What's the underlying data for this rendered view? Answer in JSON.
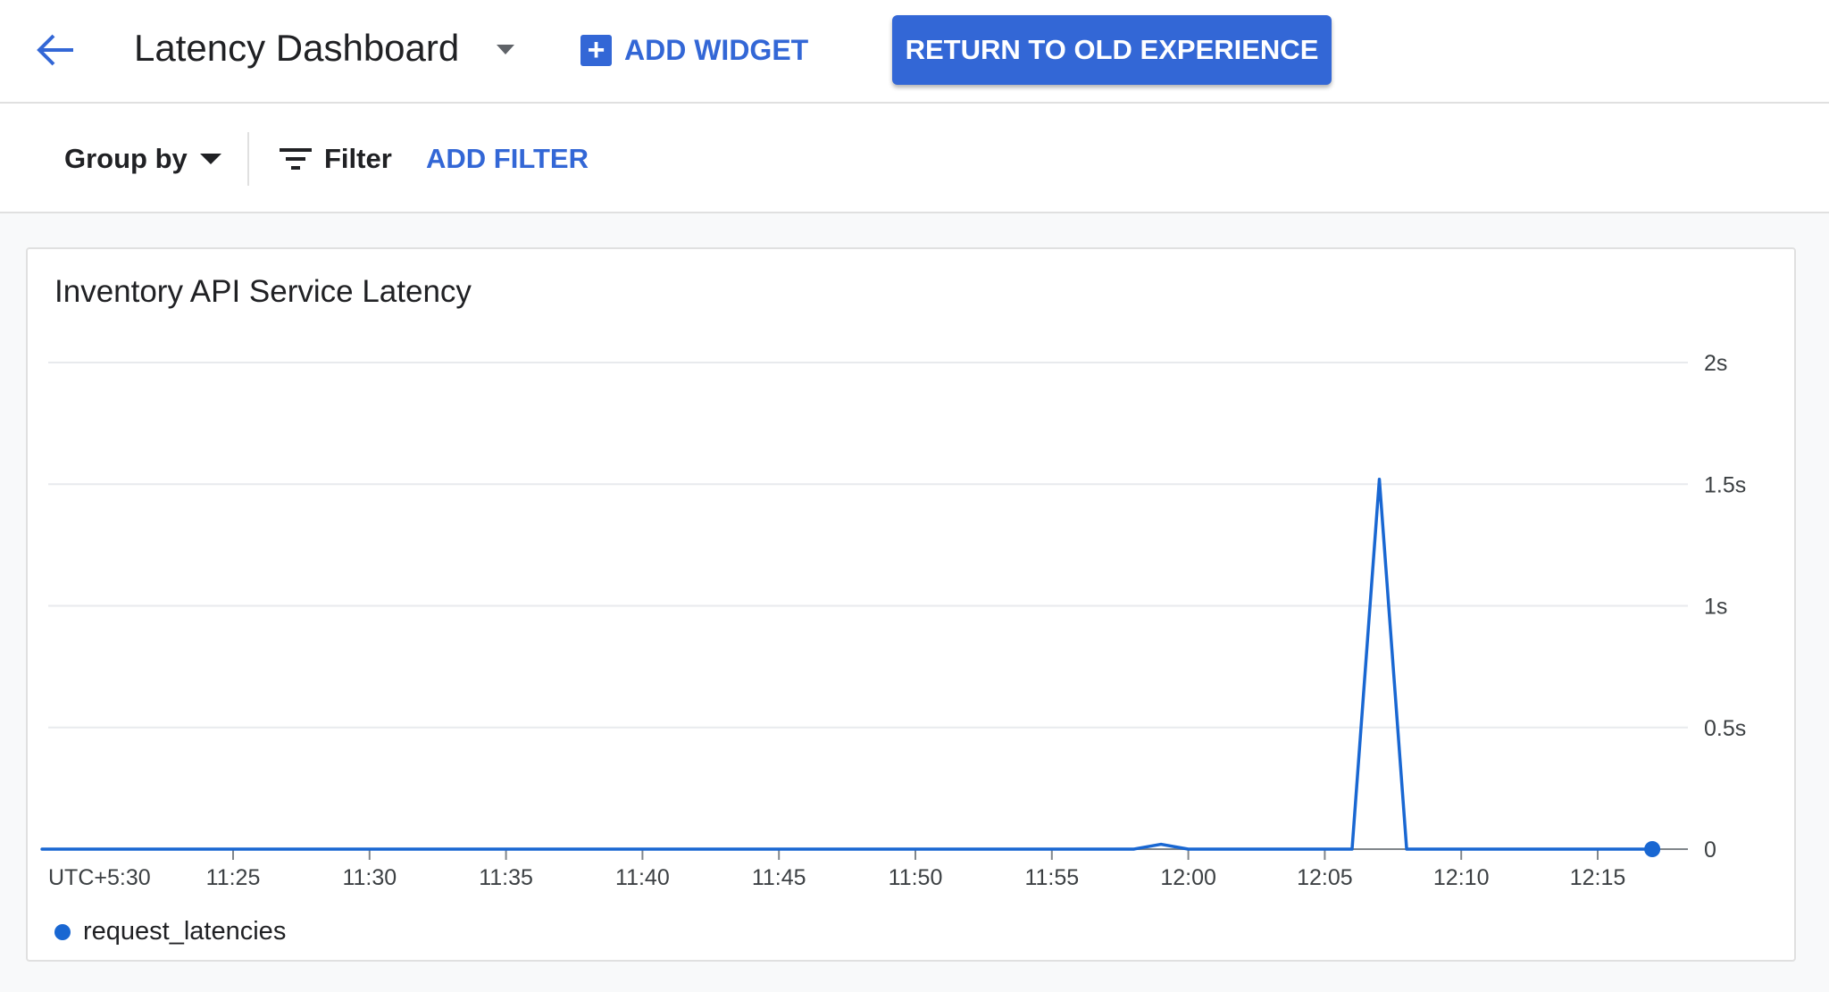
{
  "header": {
    "title": "Latency Dashboard",
    "add_widget": "ADD WIDGET",
    "return_button": "RETURN TO OLD EXPERIENCE",
    "back_icon": "arrow-left-icon",
    "accent": "#3367d6"
  },
  "toolbar": {
    "group_by": "Group by",
    "filter": "Filter",
    "add_filter": "ADD FILTER"
  },
  "widget": {
    "title": "Inventory API Service Latency",
    "legend": [
      {
        "name": "request_latencies",
        "color": "#1967d2"
      }
    ]
  },
  "chart_data": {
    "type": "line",
    "title": "Inventory API Service Latency",
    "timezone_label": "UTC+5:30",
    "x_ticks": [
      "11:25",
      "11:30",
      "11:35",
      "11:40",
      "11:45",
      "11:50",
      "11:55",
      "12:00",
      "12:05",
      "12:10",
      "12:15"
    ],
    "y_ticks": [
      {
        "value": 0,
        "label": "0"
      },
      {
        "value": 0.5,
        "label": "0.5s"
      },
      {
        "value": 1,
        "label": "1s"
      },
      {
        "value": 1.5,
        "label": "1.5s"
      },
      {
        "value": 2,
        "label": "2s"
      }
    ],
    "ylim": [
      0,
      2
    ],
    "xlim": [
      "11:18",
      "12:20"
    ],
    "grid": true,
    "legend_placement": "bottom-left",
    "series": [
      {
        "name": "request_latencies",
        "color": "#1967d2",
        "points": [
          [
            "11:18",
            0
          ],
          [
            "11:58",
            0
          ],
          [
            "11:59",
            0.02
          ],
          [
            "12:00",
            0
          ],
          [
            "12:06",
            0
          ],
          [
            "12:07",
            1.52
          ],
          [
            "12:08",
            0
          ],
          [
            "12:17",
            0
          ]
        ]
      }
    ]
  }
}
